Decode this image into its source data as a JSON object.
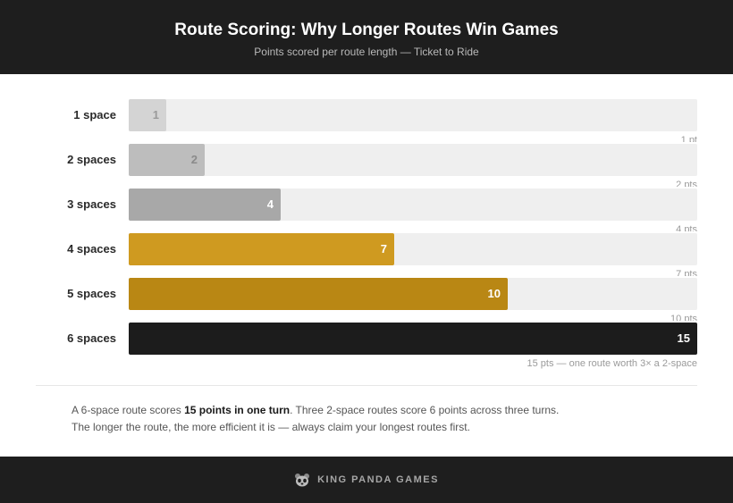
{
  "header": {
    "title": "Route Scoring: Why Longer Routes Win Games",
    "subtitle": "Points scored per route length — Ticket to Ride"
  },
  "chart_data": {
    "type": "bar",
    "orientation": "horizontal",
    "title": "Route Scoring: Why Longer Routes Win Games",
    "subtitle": "Points scored per route length — Ticket to Ride",
    "categories": [
      "1 space",
      "2 spaces",
      "3 spaces",
      "4 spaces",
      "5 spaces",
      "6 spaces"
    ],
    "values": [
      1,
      2,
      4,
      7,
      10,
      15
    ],
    "value_labels": [
      "1",
      "2",
      "4",
      "7",
      "10",
      "15"
    ],
    "notes": [
      "1 pt",
      "2 pts",
      "4 pts",
      "7 pts",
      "10 pts",
      "15 pts — one route worth 3× a 2-space"
    ],
    "xlim": [
      0,
      15
    ],
    "grid": false,
    "bar_colors": [
      "#d4d4d4",
      "#bdbdbd",
      "#a8a8a8",
      "#cf9a20",
      "#b98714",
      "#1c1c1c"
    ],
    "label_colors": [
      "#9a9a9a",
      "#8a8a8a",
      "#ffffff",
      "#ffffff",
      "#ffffff",
      "#ffffff"
    ],
    "track_color": "#efefef"
  },
  "footnote": {
    "line1_pre": "A 6-space route scores ",
    "line1_bold": "15 points in one turn",
    "line1_post": ". Three 2-space routes score 6 points across three turns.",
    "line2": "The longer the route, the more efficient it is — always claim your longest routes first."
  },
  "footer": {
    "brand": "KING PANDA GAMES",
    "logo_icon": "panda-icon"
  }
}
